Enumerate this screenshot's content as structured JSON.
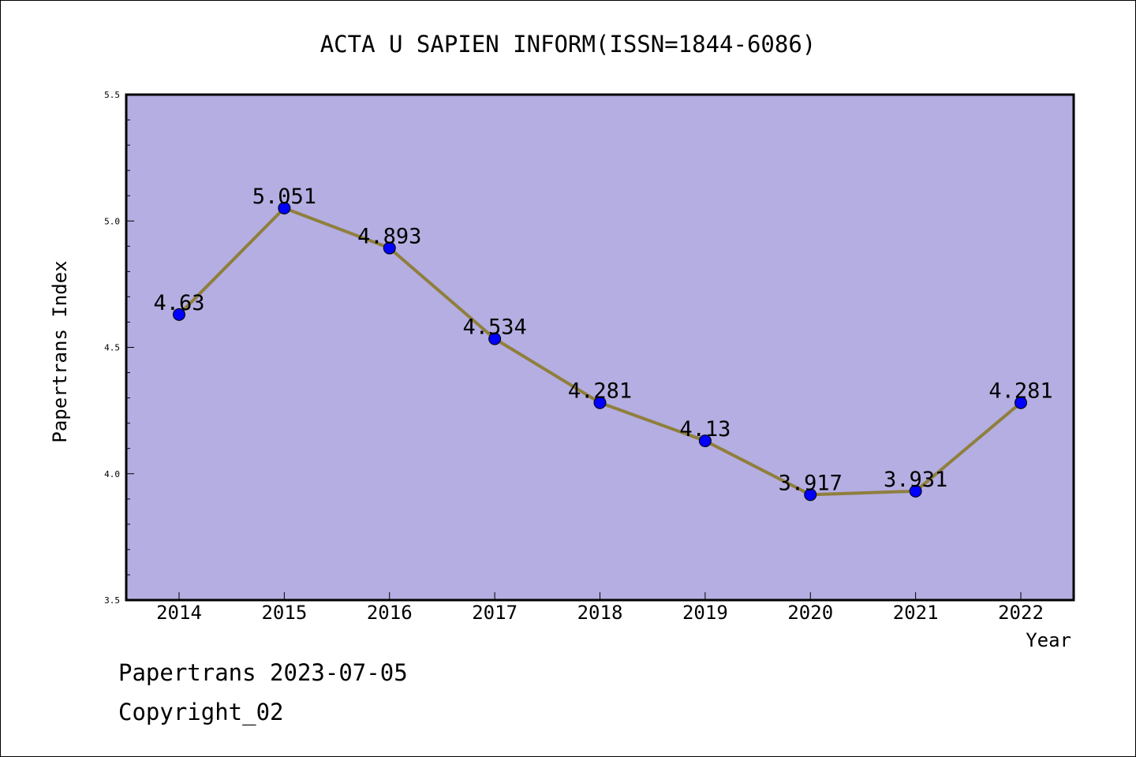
{
  "chart_data": {
    "type": "line",
    "title": "ACTA U SAPIEN INFORM(ISSN=1844-6086)",
    "xlabel": "Year",
    "ylabel": "Papertrans Index",
    "categories": [
      "2014",
      "2015",
      "2016",
      "2017",
      "2018",
      "2019",
      "2020",
      "2021",
      "2022"
    ],
    "values": [
      4.63,
      5.051,
      4.893,
      4.534,
      4.281,
      4.13,
      3.917,
      3.931,
      4.281
    ],
    "data_labels": [
      "4.63",
      "5.051",
      "4.893",
      "4.534",
      "4.281",
      "4.13",
      "3.917",
      "3.931",
      "4.281"
    ],
    "ylim": [
      3.5,
      5.5
    ],
    "yticks": [
      "3.5",
      "4.0",
      "4.5",
      "5.0",
      "5.5"
    ],
    "grid": false,
    "colors": {
      "plot_background": "#b4aee2",
      "line": "#8f7f3c",
      "marker": "#0000ff"
    }
  },
  "footer": {
    "date_line": "Papertrans 2023-07-05",
    "copyright": "Copyright_02"
  }
}
